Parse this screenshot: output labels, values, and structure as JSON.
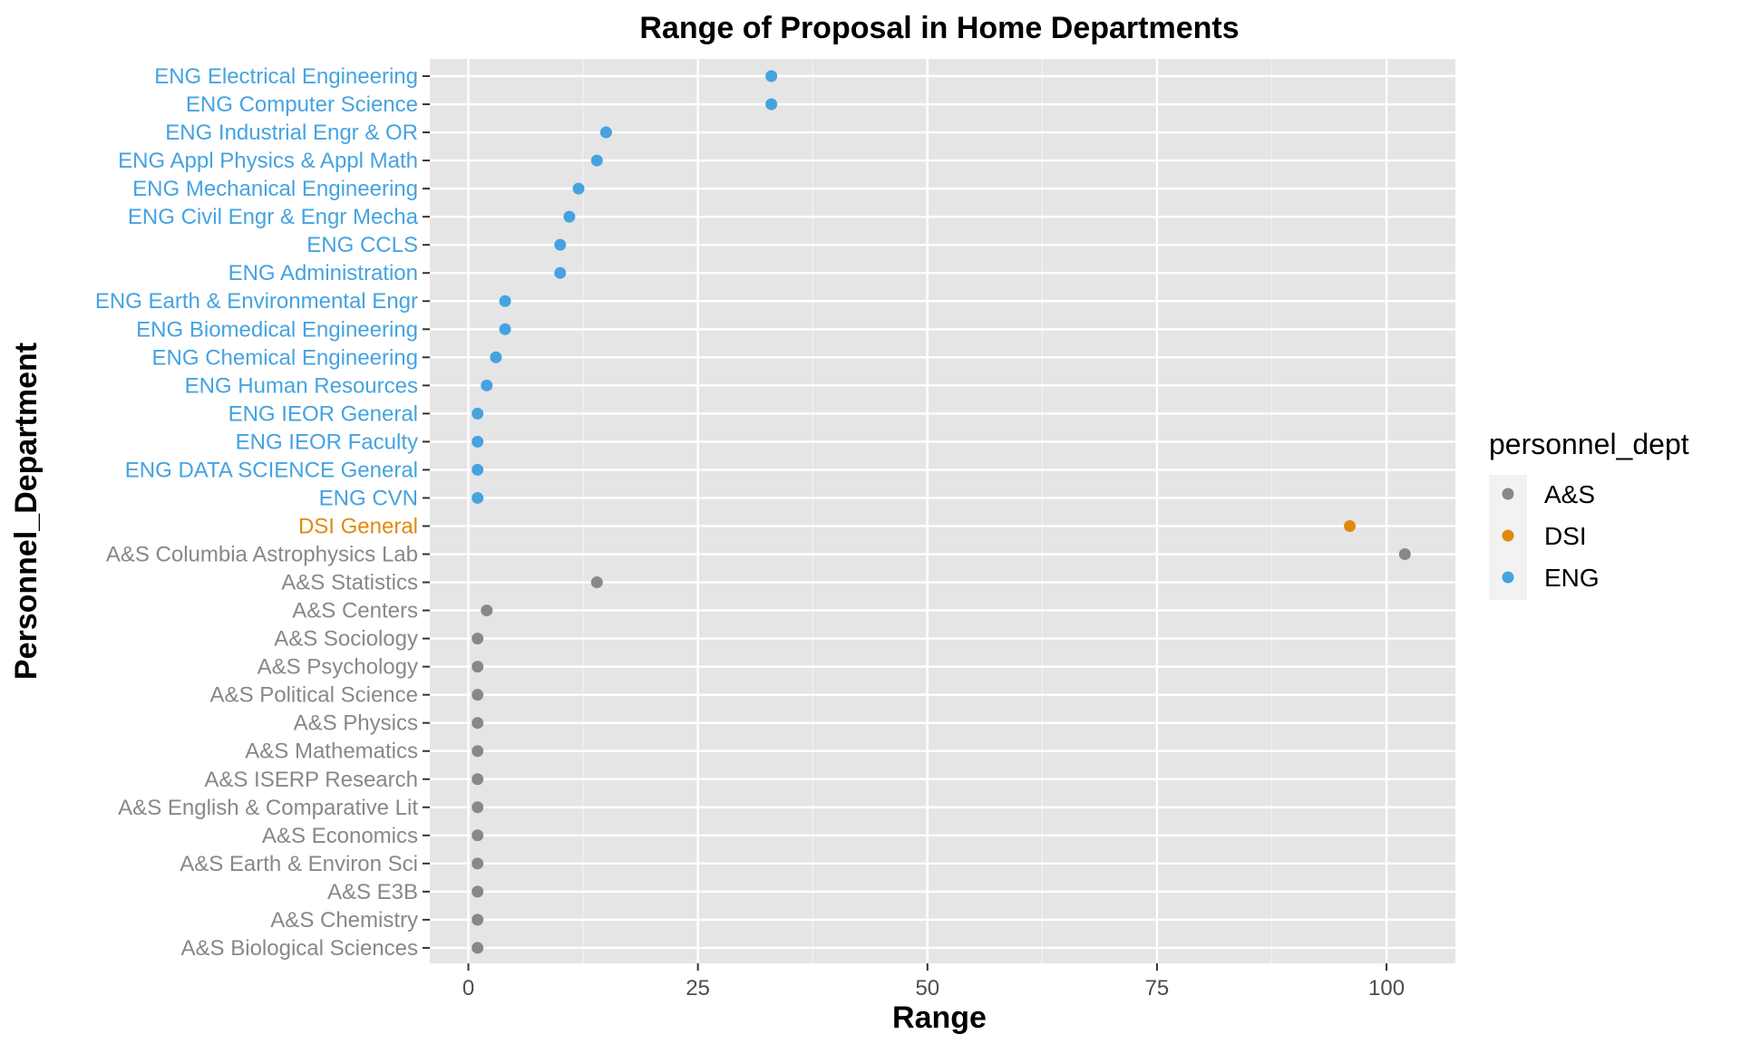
{
  "chart_data": {
    "type": "scatter",
    "title": "Range of Proposal in Home Departments",
    "xlabel": "Range",
    "ylabel": "Personnel_Department",
    "xlim": [
      -4.2,
      107.5
    ],
    "x_ticks": [
      0,
      25,
      50,
      75,
      100
    ],
    "grid": true,
    "legend": {
      "title": "personnel_dept",
      "placement": "right",
      "entries": [
        {
          "label": "A&S",
          "color": "#888888"
        },
        {
          "label": "DSI",
          "color": "#E08A0B"
        },
        {
          "label": "ENG",
          "color": "#45A3E0"
        }
      ]
    },
    "series": [
      {
        "name": "A&S",
        "color": "#888888"
      },
      {
        "name": "DSI",
        "color": "#E08A0B"
      },
      {
        "name": "ENG",
        "color": "#45A3E0"
      }
    ],
    "points": [
      {
        "category": "A&S Biological Sciences",
        "group": "A&S",
        "x": 1
      },
      {
        "category": "A&S Chemistry",
        "group": "A&S",
        "x": 1
      },
      {
        "category": "A&S E3B",
        "group": "A&S",
        "x": 1
      },
      {
        "category": "A&S Earth & Environ Sci",
        "group": "A&S",
        "x": 1
      },
      {
        "category": "A&S Economics",
        "group": "A&S",
        "x": 1
      },
      {
        "category": "A&S English & Comparative Lit",
        "group": "A&S",
        "x": 1
      },
      {
        "category": "A&S ISERP Research",
        "group": "A&S",
        "x": 1
      },
      {
        "category": "A&S Mathematics",
        "group": "A&S",
        "x": 1
      },
      {
        "category": "A&S Physics",
        "group": "A&S",
        "x": 1
      },
      {
        "category": "A&S Political Science",
        "group": "A&S",
        "x": 1
      },
      {
        "category": "A&S Psychology",
        "group": "A&S",
        "x": 1
      },
      {
        "category": "A&S Sociology",
        "group": "A&S",
        "x": 1
      },
      {
        "category": "A&S Centers",
        "group": "A&S",
        "x": 2
      },
      {
        "category": "A&S Statistics",
        "group": "A&S",
        "x": 14
      },
      {
        "category": "A&S Columbia Astrophysics Lab",
        "group": "A&S",
        "x": 102
      },
      {
        "category": "DSI General",
        "group": "DSI",
        "x": 96
      },
      {
        "category": "ENG CVN",
        "group": "ENG",
        "x": 1
      },
      {
        "category": "ENG DATA SCIENCE General",
        "group": "ENG",
        "x": 1
      },
      {
        "category": "ENG IEOR Faculty",
        "group": "ENG",
        "x": 1
      },
      {
        "category": "ENG IEOR General",
        "group": "ENG",
        "x": 1
      },
      {
        "category": "ENG Human Resources",
        "group": "ENG",
        "x": 2
      },
      {
        "category": "ENG Chemical Engineering",
        "group": "ENG",
        "x": 3
      },
      {
        "category": "ENG Biomedical Engineering",
        "group": "ENG",
        "x": 4
      },
      {
        "category": "ENG Earth & Environmental Engr",
        "group": "ENG",
        "x": 4
      },
      {
        "category": "ENG Administration",
        "group": "ENG",
        "x": 10
      },
      {
        "category": "ENG CCLS",
        "group": "ENG",
        "x": 10
      },
      {
        "category": "ENG Civil Engr  & Engr Mecha",
        "group": "ENG",
        "x": 11
      },
      {
        "category": "ENG Mechanical Engineering",
        "group": "ENG",
        "x": 12
      },
      {
        "category": "ENG Appl Physics & Appl Math",
        "group": "ENG",
        "x": 14
      },
      {
        "category": "ENG Industrial Engr & OR",
        "group": "ENG",
        "x": 15
      },
      {
        "category": "ENG Computer Science",
        "group": "ENG",
        "x": 33
      },
      {
        "category": "ENG Electrical Engineering",
        "group": "ENG",
        "x": 33
      }
    ]
  }
}
